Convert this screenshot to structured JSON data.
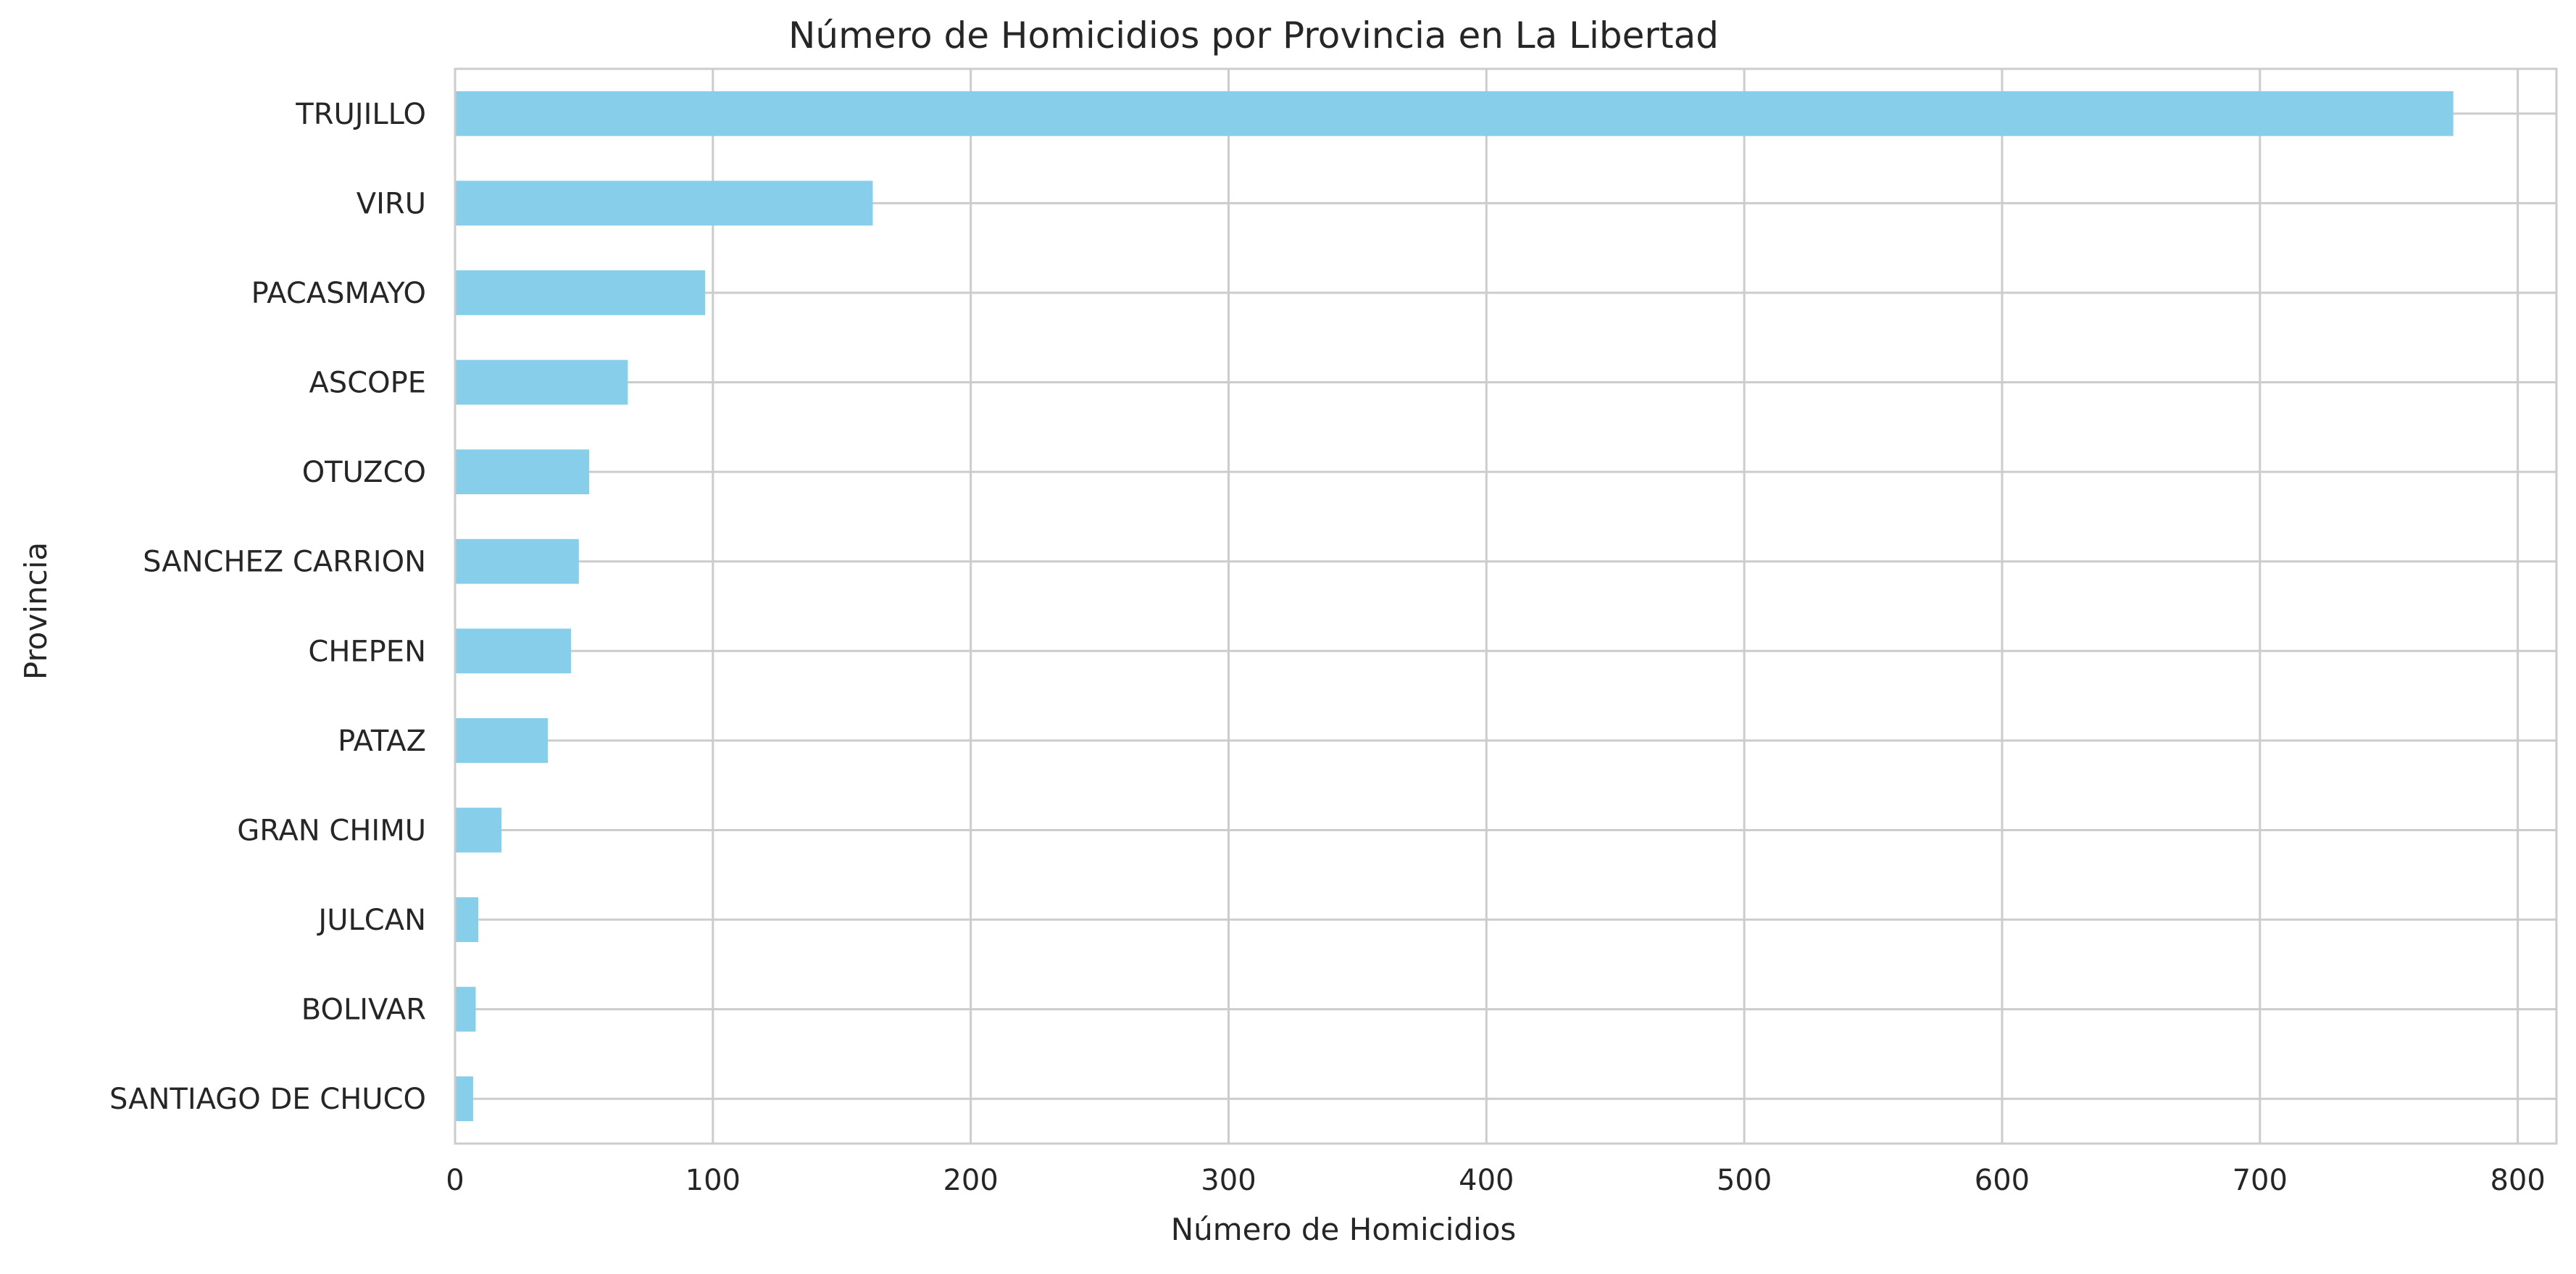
{
  "chart_data": {
    "type": "bar",
    "orientation": "horizontal",
    "title": "Número de Homicidios por Provincia en La Libertad",
    "xlabel": "Número de Homicidios",
    "ylabel": "Provincia",
    "categories": [
      "TRUJILLO",
      "VIRU",
      "PACASMAYO",
      "ASCOPE",
      "OTUZCO",
      "SANCHEZ CARRION",
      "CHEPEN",
      "PATAZ",
      "GRAN CHIMU",
      "JULCAN",
      "BOLIVAR",
      "SANTIAGO DE CHUCO"
    ],
    "values": [
      775,
      162,
      97,
      67,
      52,
      48,
      45,
      36,
      18,
      9,
      8,
      7
    ],
    "xlim": [
      0,
      815
    ],
    "xticks": [
      0,
      100,
      200,
      300,
      400,
      500,
      600,
      700,
      800
    ],
    "grid": true,
    "bar_color": "#87ceeb",
    "grid_color": "#cccccc",
    "spine_color": "#cccccc"
  }
}
